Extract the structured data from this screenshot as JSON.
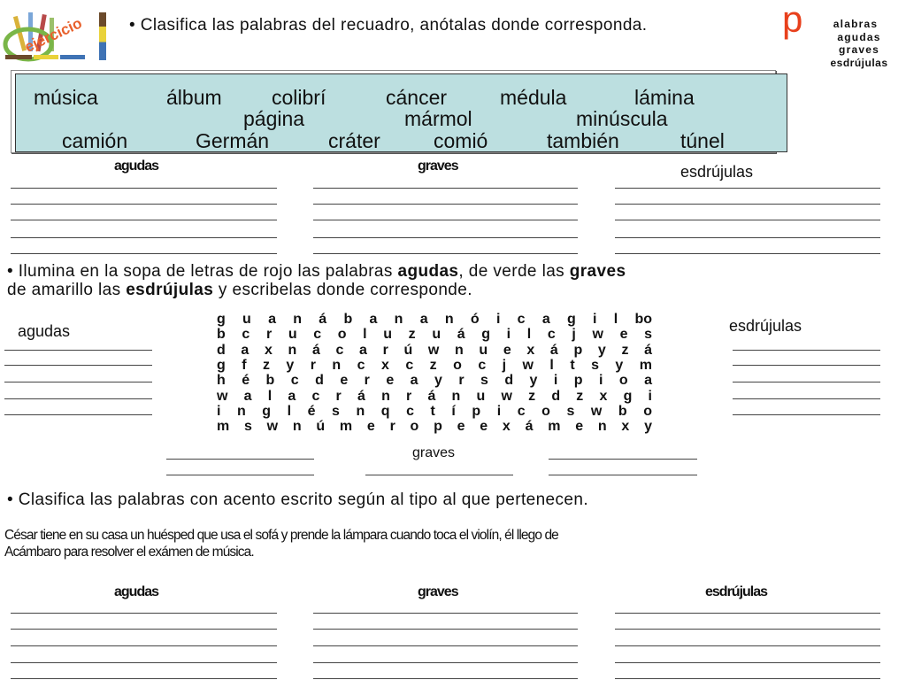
{
  "header": {
    "logo_text": "ejercicio",
    "instruction_1": "• Clasifica las palabras del recuadro, anótalas donde corresponda.",
    "title_initial": "p",
    "title_lines": [
      "alabras",
      "agudas",
      "graves",
      "esdrújulas"
    ],
    "accent_color": "#e8401c"
  },
  "word_box": {
    "row1": [
      "música",
      "álbum",
      "colibrí",
      "cáncer",
      "médula",
      "lámina"
    ],
    "row2": [
      "página",
      "mármol",
      "minúscula"
    ],
    "row3": [
      "camión",
      "Germán",
      "cráter",
      "comió",
      "también",
      "túnel"
    ],
    "background": "#bcdfe0"
  },
  "section1": {
    "agudas": "agudas",
    "graves": "graves",
    "esdrujulas": "esdrújulas"
  },
  "instruction_2_parts": [
    "• Ilumina en la sopa de letras de rojo las palabras ",
    "agudas",
    ", de verde las ",
    "graves"
  ],
  "instruction_2_line2_parts": [
    "de amarillo las ",
    "esdrújulas",
    " y escribelas donde corresponde."
  ],
  "word_search": {
    "rows": [
      "g u a n á b a n a n ó i c a g i l bo",
      "b c r u c o l u z u á g i l c j w e s",
      "d a x n á c a r ú w n u e x á p y z á",
      "g f z y r n c x c z o c j w l t s y m",
      "h é b c d e r e a y r s d y i p i o a",
      "w a l a c r á n r á n u w z d z x g i",
      "i n g l é s n q c t í p i c o s w b o",
      "m s w n ú m e r o p e e x á m e n x y"
    ],
    "agudas_label": "agudas",
    "esdrujulas_label": "esdrújulas",
    "graves_label": "graves"
  },
  "instruction_3": "• Clasifica las palabras con acento escrito según al tipo al que pertenecen.",
  "sentence_line1": "César tiene en su casa un huésped que usa el sofá y prende la lámpara cuando toca el violín, él llego de",
  "sentence_line2": "Acámbaro para resolver el exámen de música.",
  "section3": {
    "agudas": "agudas",
    "graves": "graves",
    "esdrujulas": "esdrújulas"
  }
}
